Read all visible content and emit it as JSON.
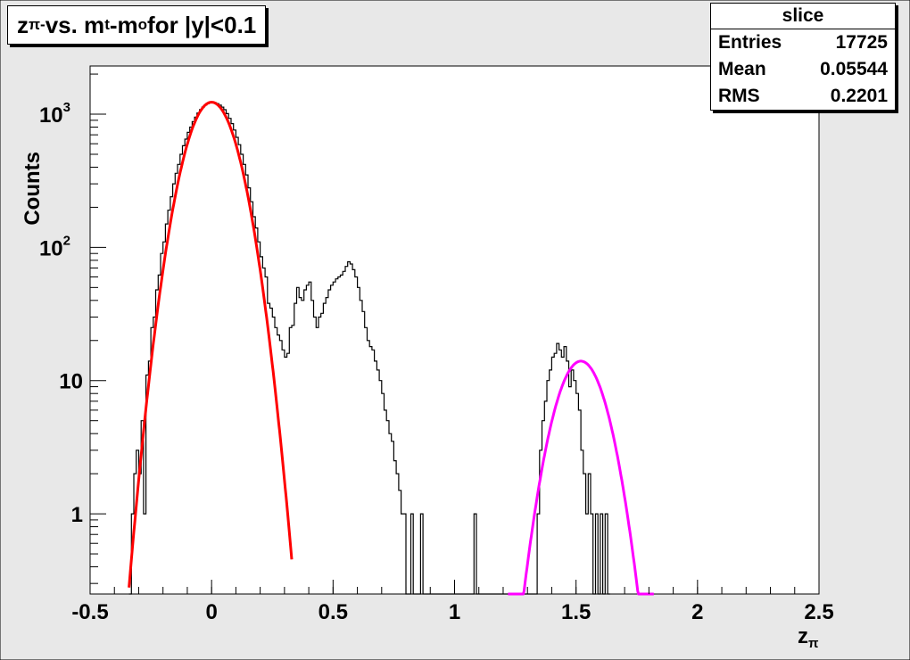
{
  "title": {
    "prefix": "z",
    "prefix_sub": "π-",
    "middle": " vs. m",
    "middle_sub": "t",
    "suffix1": "-m",
    "suffix_sub": "o",
    "suffix2": " for |y|<0.1"
  },
  "stats": {
    "name": "slice",
    "rows": [
      {
        "label": "Entries",
        "value": "17725"
      },
      {
        "label": "Mean",
        "value": "0.05544"
      },
      {
        "label": "RMS",
        "value": "0.2201"
      }
    ]
  },
  "colors": {
    "frame_bg": "#e8e8e8",
    "plot_bg": "#ffffff",
    "histogram": "#000000",
    "fit_pion": "#ff0000",
    "fit_kaon": "#ff00ff"
  },
  "chart_data": {
    "type": "histogram",
    "xlabel": "z",
    "xlabel_sub": "π",
    "ylabel": "Counts",
    "xlim": [
      -0.5,
      2.5
    ],
    "ylim": [
      0.25,
      2300
    ],
    "y_scale": "log",
    "grid": false,
    "x_ticks": [
      {
        "value": -0.5,
        "label": "-0.5"
      },
      {
        "value": 0,
        "label": "0"
      },
      {
        "value": 0.5,
        "label": "0.5"
      },
      {
        "value": 1,
        "label": "1"
      },
      {
        "value": 1.5,
        "label": "1.5"
      },
      {
        "value": 2,
        "label": "2"
      },
      {
        "value": 2.5,
        "label": "2.5"
      }
    ],
    "y_ticks": [
      {
        "value": 1,
        "label": "1"
      },
      {
        "value": 10,
        "label": "10"
      },
      {
        "value": 100,
        "label": "10",
        "exp": "2"
      },
      {
        "value": 1000,
        "label": "10",
        "exp": "3"
      }
    ],
    "histogram": {
      "name": "slice",
      "bins": [
        [
          -0.34,
          0
        ],
        [
          -0.33,
          1
        ],
        [
          -0.32,
          2
        ],
        [
          -0.31,
          3
        ],
        [
          -0.3,
          2
        ],
        [
          -0.29,
          5
        ],
        [
          -0.28,
          1
        ],
        [
          -0.27,
          11
        ],
        [
          -0.26,
          14
        ],
        [
          -0.25,
          25
        ],
        [
          -0.24,
          30
        ],
        [
          -0.23,
          48
        ],
        [
          -0.22,
          62
        ],
        [
          -0.21,
          90
        ],
        [
          -0.2,
          110
        ],
        [
          -0.19,
          150
        ],
        [
          -0.18,
          190
        ],
        [
          -0.17,
          240
        ],
        [
          -0.16,
          300
        ],
        [
          -0.15,
          360
        ],
        [
          -0.14,
          420
        ],
        [
          -0.13,
          500
        ],
        [
          -0.12,
          580
        ],
        [
          -0.11,
          650
        ],
        [
          -0.1,
          730
        ],
        [
          -0.09,
          800
        ],
        [
          -0.08,
          880
        ],
        [
          -0.07,
          950
        ],
        [
          -0.06,
          1020
        ],
        [
          -0.05,
          1080
        ],
        [
          -0.04,
          1130
        ],
        [
          -0.03,
          1170
        ],
        [
          -0.02,
          1200
        ],
        [
          -0.01,
          1220
        ],
        [
          0.0,
          1230
        ],
        [
          0.01,
          1220
        ],
        [
          0.02,
          1200
        ],
        [
          0.03,
          1170
        ],
        [
          0.04,
          1130
        ],
        [
          0.05,
          1080
        ],
        [
          0.06,
          1010
        ],
        [
          0.07,
          930
        ],
        [
          0.08,
          850
        ],
        [
          0.09,
          760
        ],
        [
          0.1,
          670
        ],
        [
          0.11,
          590
        ],
        [
          0.12,
          500
        ],
        [
          0.13,
          420
        ],
        [
          0.14,
          350
        ],
        [
          0.15,
          280
        ],
        [
          0.16,
          220
        ],
        [
          0.17,
          170
        ],
        [
          0.18,
          140
        ],
        [
          0.19,
          110
        ],
        [
          0.2,
          85
        ],
        [
          0.21,
          70
        ],
        [
          0.22,
          60
        ],
        [
          0.23,
          38
        ],
        [
          0.24,
          35
        ],
        [
          0.25,
          30
        ],
        [
          0.26,
          25
        ],
        [
          0.27,
          22
        ],
        [
          0.28,
          20
        ],
        [
          0.29,
          17
        ],
        [
          0.3,
          15
        ],
        [
          0.31,
          16
        ],
        [
          0.32,
          25
        ],
        [
          0.33,
          26
        ],
        [
          0.34,
          38
        ],
        [
          0.35,
          50
        ],
        [
          0.36,
          42
        ],
        [
          0.37,
          40
        ],
        [
          0.38,
          48
        ],
        [
          0.39,
          52
        ],
        [
          0.4,
          55
        ],
        [
          0.41,
          40
        ],
        [
          0.42,
          30
        ],
        [
          0.43,
          25
        ],
        [
          0.44,
          30
        ],
        [
          0.45,
          32
        ],
        [
          0.46,
          38
        ],
        [
          0.47,
          42
        ],
        [
          0.48,
          48
        ],
        [
          0.49,
          52
        ],
        [
          0.5,
          55
        ],
        [
          0.51,
          58
        ],
        [
          0.52,
          60
        ],
        [
          0.53,
          62
        ],
        [
          0.54,
          66
        ],
        [
          0.55,
          72
        ],
        [
          0.56,
          78
        ],
        [
          0.57,
          75
        ],
        [
          0.58,
          68
        ],
        [
          0.59,
          60
        ],
        [
          0.6,
          50
        ],
        [
          0.61,
          40
        ],
        [
          0.62,
          33
        ],
        [
          0.63,
          25
        ],
        [
          0.64,
          20
        ],
        [
          0.65,
          18
        ],
        [
          0.66,
          17
        ],
        [
          0.67,
          14
        ],
        [
          0.68,
          12
        ],
        [
          0.69,
          10
        ],
        [
          0.7,
          8
        ],
        [
          0.71,
          6
        ],
        [
          0.72,
          5
        ],
        [
          0.73,
          4
        ],
        [
          0.74,
          3.5
        ],
        [
          0.75,
          2.5
        ],
        [
          0.76,
          2
        ],
        [
          0.77,
          1.5
        ],
        [
          0.78,
          1
        ],
        [
          0.79,
          1
        ],
        [
          0.8,
          0
        ],
        [
          0.82,
          1
        ],
        [
          0.83,
          0
        ],
        [
          0.86,
          1
        ],
        [
          0.87,
          0
        ],
        [
          1.08,
          1
        ],
        [
          1.09,
          0
        ],
        [
          1.34,
          1
        ],
        [
          1.35,
          3
        ],
        [
          1.36,
          5
        ],
        [
          1.37,
          7
        ],
        [
          1.38,
          10
        ],
        [
          1.39,
          12
        ],
        [
          1.4,
          15
        ],
        [
          1.41,
          16
        ],
        [
          1.42,
          19
        ],
        [
          1.43,
          17
        ],
        [
          1.44,
          15
        ],
        [
          1.45,
          18
        ],
        [
          1.46,
          14
        ],
        [
          1.47,
          9
        ],
        [
          1.48,
          12
        ],
        [
          1.49,
          10
        ],
        [
          1.5,
          8
        ],
        [
          1.51,
          6
        ],
        [
          1.52,
          3
        ],
        [
          1.53,
          2
        ],
        [
          1.54,
          1
        ],
        [
          1.55,
          2
        ],
        [
          1.56,
          1
        ],
        [
          1.57,
          0
        ],
        [
          1.58,
          1
        ],
        [
          1.59,
          0
        ],
        [
          1.6,
          1
        ],
        [
          1.61,
          0
        ],
        [
          1.62,
          1
        ],
        [
          1.63,
          0
        ]
      ]
    },
    "fits": [
      {
        "kind": "gaussian",
        "amplitude": 1230,
        "mean": 0.0,
        "sigma": 0.083,
        "range": [
          -0.34,
          0.33
        ],
        "color": "#ff0000"
      },
      {
        "kind": "gaussian",
        "amplitude": 14,
        "mean": 1.52,
        "sigma": 0.083,
        "range": [
          1.22,
          1.82
        ],
        "color": "#ff00ff"
      }
    ]
  }
}
